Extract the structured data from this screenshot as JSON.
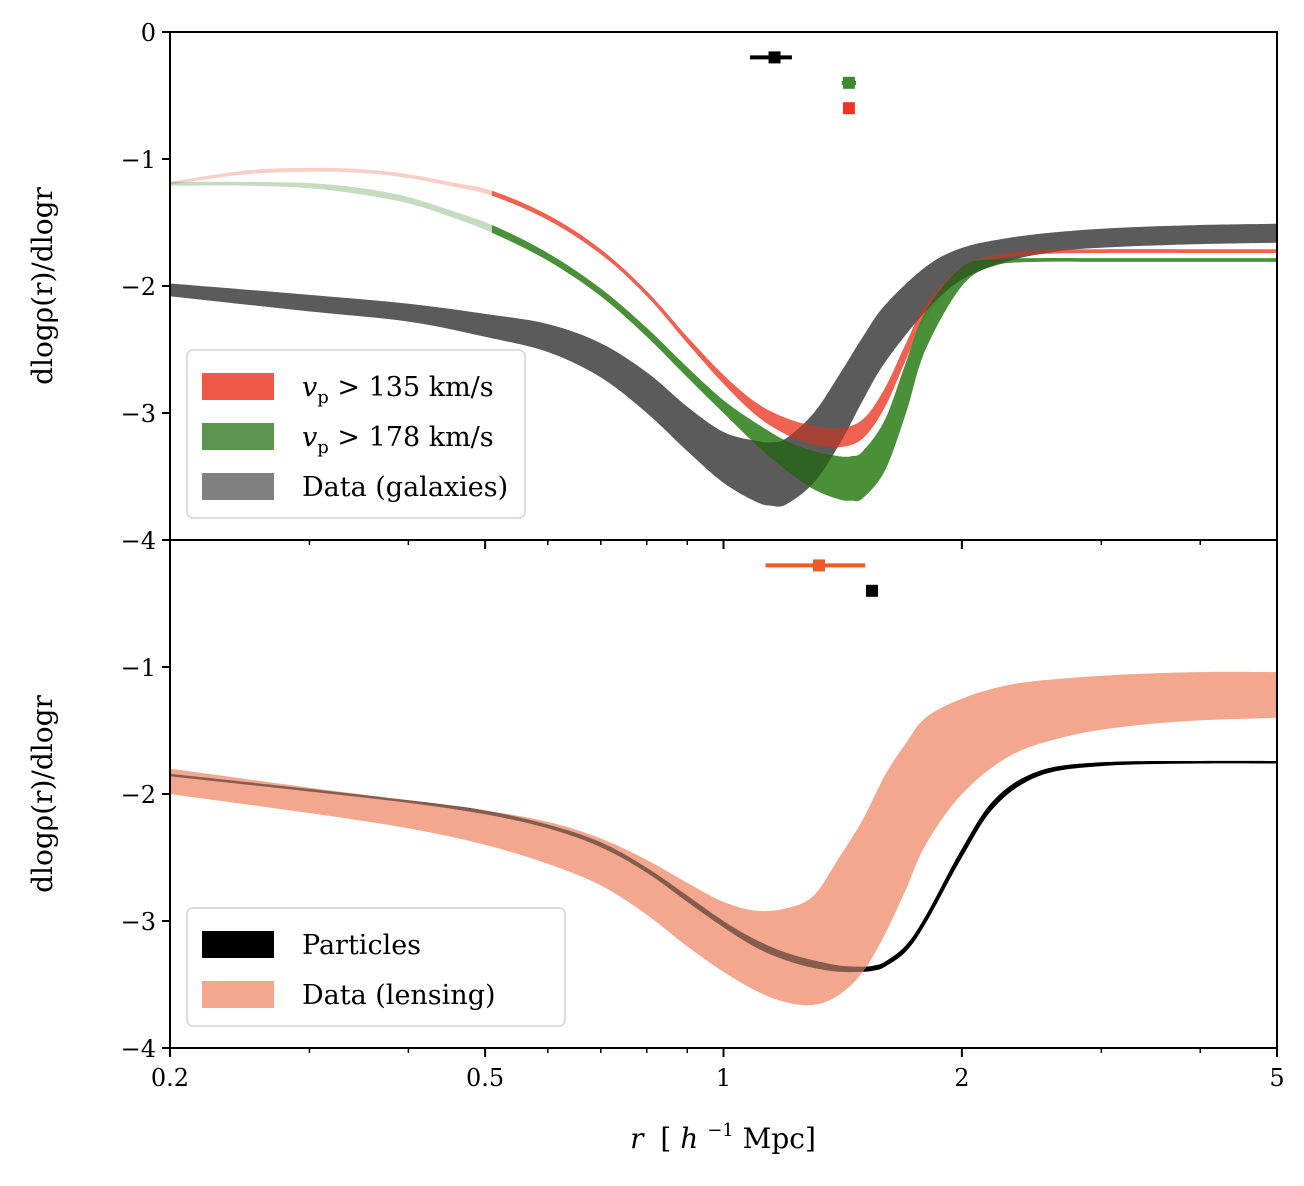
{
  "chart_data": [
    {
      "type": "area",
      "panel": "top",
      "title": "",
      "xlabel": "r [h^-1 Mpc]",
      "ylabel": "dlogρ(r)/dlogr",
      "xscale": "log",
      "xlim": [
        0.2,
        5
      ],
      "ylim": [
        -4,
        0
      ],
      "xticks": [
        0.2,
        0.5,
        1,
        2,
        5
      ],
      "xtick_labels": [
        "0.2",
        "0.5",
        "1",
        "2",
        "5"
      ],
      "yticks": [
        0,
        -1,
        -2,
        -3,
        -4
      ],
      "ytick_labels": [
        "0",
        "−1",
        "−2",
        "−3",
        "−4"
      ],
      "grid": false,
      "legend_position": "lower-left",
      "series": [
        {
          "name": "Data (galaxies)",
          "color": "#7f7f7f",
          "kind": "band",
          "x": [
            0.2,
            0.3,
            0.4,
            0.5,
            0.6,
            0.7,
            0.8,
            0.9,
            1.0,
            1.1,
            1.15,
            1.2,
            1.3,
            1.4,
            1.5,
            1.6,
            1.8,
            2.0,
            2.3,
            2.7,
            3.2,
            4.0,
            5.0
          ],
          "lower": [
            -2.08,
            -2.2,
            -2.28,
            -2.4,
            -2.52,
            -2.72,
            -3.0,
            -3.3,
            -3.55,
            -3.7,
            -3.73,
            -3.72,
            -3.55,
            -3.25,
            -2.9,
            -2.6,
            -2.2,
            -1.95,
            -1.8,
            -1.72,
            -1.69,
            -1.67,
            -1.66
          ],
          "upper": [
            -1.98,
            -2.07,
            -2.14,
            -2.22,
            -2.3,
            -2.45,
            -2.68,
            -2.95,
            -3.15,
            -3.22,
            -3.23,
            -3.2,
            -3.0,
            -2.7,
            -2.4,
            -2.15,
            -1.85,
            -1.7,
            -1.62,
            -1.57,
            -1.54,
            -1.52,
            -1.51
          ]
        },
        {
          "name": "vp > 135 km/s",
          "legend_label": "v_p > 135 km/s",
          "color": "#ee5847",
          "kind": "band",
          "faded_below_x": 0.51,
          "x": [
            0.2,
            0.25,
            0.3,
            0.35,
            0.4,
            0.45,
            0.51,
            0.6,
            0.7,
            0.8,
            0.9,
            1.0,
            1.1,
            1.2,
            1.3,
            1.4,
            1.5,
            1.6,
            1.7,
            1.8,
            2.0,
            2.2,
            2.5,
            3.0,
            4.0,
            5.0
          ],
          "lower": [
            -1.2,
            -1.12,
            -1.1,
            -1.11,
            -1.15,
            -1.21,
            -1.29,
            -1.48,
            -1.75,
            -2.08,
            -2.45,
            -2.77,
            -3.02,
            -3.17,
            -3.25,
            -3.27,
            -3.2,
            -2.95,
            -2.58,
            -2.25,
            -1.92,
            -1.8,
            -1.75,
            -1.74,
            -1.74,
            -1.74
          ],
          "upper": [
            -1.18,
            -1.09,
            -1.07,
            -1.08,
            -1.12,
            -1.18,
            -1.25,
            -1.44,
            -1.71,
            -2.04,
            -2.4,
            -2.7,
            -2.92,
            -3.04,
            -3.1,
            -3.12,
            -3.05,
            -2.8,
            -2.45,
            -2.15,
            -1.85,
            -1.76,
            -1.72,
            -1.71,
            -1.71,
            -1.71
          ]
        },
        {
          "name": "vp > 178 km/s",
          "legend_label": "v_p > 178 km/s",
          "color": "#3f8a2e",
          "kind": "band",
          "faded_below_x": 0.51,
          "x": [
            0.2,
            0.25,
            0.3,
            0.35,
            0.4,
            0.45,
            0.51,
            0.6,
            0.7,
            0.8,
            0.9,
            1.0,
            1.1,
            1.2,
            1.3,
            1.4,
            1.45,
            1.5,
            1.6,
            1.7,
            1.8,
            2.0,
            2.2,
            2.5,
            3.0,
            4.0,
            5.0
          ],
          "lower": [
            -1.21,
            -1.21,
            -1.23,
            -1.28,
            -1.35,
            -1.45,
            -1.58,
            -1.8,
            -2.08,
            -2.4,
            -2.72,
            -3.0,
            -3.25,
            -3.45,
            -3.6,
            -3.68,
            -3.69,
            -3.67,
            -3.45,
            -3.0,
            -2.5,
            -2.0,
            -1.84,
            -1.81,
            -1.81,
            -1.81,
            -1.81
          ],
          "upper": [
            -1.18,
            -1.18,
            -1.19,
            -1.23,
            -1.3,
            -1.4,
            -1.52,
            -1.74,
            -2.02,
            -2.33,
            -2.64,
            -2.9,
            -3.08,
            -3.22,
            -3.3,
            -3.34,
            -3.34,
            -3.3,
            -3.05,
            -2.6,
            -2.2,
            -1.85,
            -1.79,
            -1.78,
            -1.78,
            -1.78,
            -1.78
          ]
        }
      ],
      "errorbars": [
        {
          "name": "Data (galaxies) minimum",
          "color": "#000000",
          "x": 1.16,
          "y": -0.2,
          "xerr_low": 1.08,
          "xerr_high": 1.22
        },
        {
          "name": "vp > 178 km/s minimum",
          "color": "#3f8a2e",
          "x": 1.44,
          "y": -0.4,
          "xerr_low": 1.41,
          "xerr_high": 1.47
        },
        {
          "name": "vp > 135 km/s minimum",
          "color": "#ee3322",
          "x": 1.44,
          "y": -0.6,
          "xerr_low": 1.44,
          "xerr_high": 1.44
        }
      ],
      "legend": [
        {
          "label_var": "v",
          "label_sub": "p",
          "label_rest": " > 135 km/s",
          "color": "#ee5847"
        },
        {
          "label_var": "v",
          "label_sub": "p",
          "label_rest": " > 178 km/s",
          "color": "#5b9550"
        },
        {
          "label_var": "",
          "label_sub": "",
          "label_rest": "Data (galaxies)",
          "color": "#808080"
        }
      ]
    },
    {
      "type": "area",
      "panel": "bottom",
      "title": "",
      "xlabel": "r [h^-1 Mpc]",
      "ylabel": "dlogρ(r)/dlogr",
      "xscale": "log",
      "xlim": [
        0.2,
        5
      ],
      "ylim": [
        -4,
        0
      ],
      "xticks": [
        0.2,
        0.5,
        1,
        2,
        5
      ],
      "xtick_labels": [
        "0.2",
        "0.5",
        "1",
        "2",
        "5"
      ],
      "yticks": [
        -1,
        -2,
        -3,
        -4
      ],
      "ytick_labels": [
        "−1",
        "−2",
        "−3",
        "−4"
      ],
      "grid": false,
      "legend_position": "lower-left",
      "series": [
        {
          "name": "Data (lensing)",
          "color": "#f4a78f",
          "kind": "band",
          "x": [
            0.2,
            0.3,
            0.4,
            0.5,
            0.6,
            0.7,
            0.8,
            0.9,
            1.0,
            1.1,
            1.2,
            1.3,
            1.4,
            1.5,
            1.6,
            1.7,
            1.8,
            2.0,
            2.3,
            2.7,
            3.2,
            4.0,
            5.0
          ],
          "lower": [
            -2.0,
            -2.15,
            -2.27,
            -2.4,
            -2.55,
            -2.72,
            -2.95,
            -3.2,
            -3.4,
            -3.55,
            -3.64,
            -3.66,
            -3.58,
            -3.4,
            -3.1,
            -2.75,
            -2.4,
            -2.0,
            -1.7,
            -1.55,
            -1.47,
            -1.42,
            -1.4
          ],
          "upper": [
            -1.8,
            -1.95,
            -2.05,
            -2.13,
            -2.22,
            -2.35,
            -2.52,
            -2.7,
            -2.85,
            -2.92,
            -2.9,
            -2.8,
            -2.5,
            -2.2,
            -1.85,
            -1.6,
            -1.4,
            -1.25,
            -1.14,
            -1.09,
            -1.06,
            -1.04,
            -1.04
          ]
        },
        {
          "name": "Particles",
          "color": "#000000",
          "kind": "band",
          "x": [
            0.2,
            0.3,
            0.4,
            0.5,
            0.6,
            0.7,
            0.8,
            0.9,
            1.0,
            1.1,
            1.2,
            1.3,
            1.4,
            1.5,
            1.55,
            1.6,
            1.7,
            1.8,
            2.0,
            2.2,
            2.5,
            3.0,
            4.0,
            5.0
          ],
          "lower": [
            -1.86,
            -1.98,
            -2.07,
            -2.16,
            -2.27,
            -2.42,
            -2.62,
            -2.85,
            -3.05,
            -3.21,
            -3.31,
            -3.37,
            -3.4,
            -3.4,
            -3.39,
            -3.36,
            -3.24,
            -3.02,
            -2.5,
            -2.1,
            -1.86,
            -1.78,
            -1.76,
            -1.76
          ],
          "upper": [
            -1.84,
            -1.96,
            -2.05,
            -2.13,
            -2.24,
            -2.38,
            -2.58,
            -2.8,
            -3.0,
            -3.15,
            -3.25,
            -3.31,
            -3.35,
            -3.36,
            -3.35,
            -3.32,
            -3.19,
            -2.96,
            -2.43,
            -2.04,
            -1.82,
            -1.75,
            -1.74,
            -1.74
          ]
        }
      ],
      "errorbars": [
        {
          "name": "Data (lensing) minimum",
          "color": "#ec5a2a",
          "x": 1.32,
          "y": -0.2,
          "xerr_low": 1.13,
          "xerr_high": 1.51
        },
        {
          "name": "Particles minimum",
          "color": "#000000",
          "x": 1.54,
          "y": -0.4,
          "xerr_low": 1.52,
          "xerr_high": 1.56
        }
      ],
      "legend": [
        {
          "label_var": "",
          "label_sub": "",
          "label_rest": "Particles",
          "color": "#000000"
        },
        {
          "label_var": "",
          "label_sub": "",
          "label_rest": "Data (lensing)",
          "color": "#f4a78f"
        }
      ]
    }
  ],
  "labels": {
    "xlabel_r": "r",
    "xlabel_unit_open": "[",
    "xlabel_h": "h",
    "xlabel_exp": "−1",
    "xlabel_unit_rest": "Mpc]",
    "ylabel_top": "dlogρ(r)/dlogr",
    "ylabel_bottom": "dlogρ(r)/dlogr"
  }
}
